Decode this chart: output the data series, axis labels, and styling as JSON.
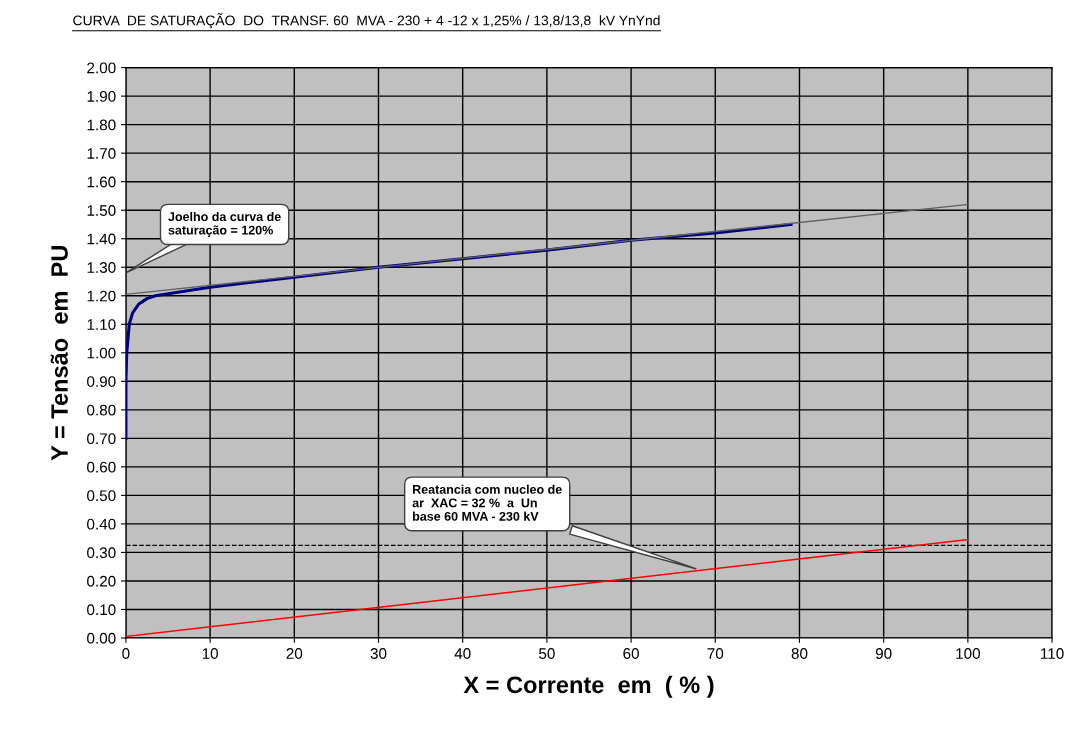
{
  "chart_data": {
    "type": "line",
    "title": "CURVA  DE SATURAÇÃO  DO  TRANSF. 60  MVA - 230 + 4 -12 x 1,25% / 13,8/13,8  kV YnYnd",
    "xlabel": "X = Corrente  em  ( % )",
    "ylabel": "Y = Tensão  em  PU",
    "series": [
      {
        "color": "#000080",
        "x": [
          0,
          0,
          0.1,
          0.4,
          0.8,
          1.5,
          2.5,
          3.5,
          10,
          20,
          30,
          40,
          50,
          60,
          70,
          79
        ],
        "values": [
          0.7,
          0.9,
          1.0,
          1.1,
          1.14,
          1.17,
          1.19,
          1.2,
          1.23,
          1.265,
          1.3,
          1.33,
          1.36,
          1.395,
          1.42,
          1.45
        ]
      },
      {
        "color": "#606060",
        "x": [
          0,
          100
        ],
        "values": [
          1.205,
          1.52
        ]
      },
      {
        "color": "#ff0000",
        "x": [
          0,
          100
        ],
        "values": [
          0.005,
          0.345
        ]
      }
    ],
    "ref_lines": [
      {
        "axis": "y",
        "value": 0.325,
        "color": "#000000",
        "line_style": "dashed"
      }
    ],
    "annotations": [
      "Joelho da curva de\nsaturação = 120%",
      {
        "text": "Reatancia com nucleo de\nar  XAC = 32 %  a  Un\nbase 60 MVA - 230 kV",
        "x": 68,
        "y": 0.24
      }
    ],
    "xlim": [
      0,
      110
    ],
    "xticks": [
      0,
      10,
      20,
      30,
      40,
      50,
      60,
      70,
      80,
      90,
      100,
      110
    ],
    "ylim": [
      0,
      2
    ],
    "yticks": [
      {
        "value": 0,
        "label": "0.00"
      },
      {
        "value": 0.1,
        "label": "0.10"
      },
      {
        "value": 0.2,
        "label": "0.20"
      },
      {
        "value": 0.3,
        "label": "0.30"
      },
      {
        "value": 0.4,
        "label": "0.40"
      },
      {
        "value": 0.5,
        "label": "0.50"
      },
      {
        "value": 0.6,
        "label": "0.60"
      },
      {
        "value": 0.7,
        "label": "0.70"
      },
      {
        "value": 0.8,
        "label": "0.80"
      },
      {
        "value": 0.9,
        "label": "0.90"
      },
      {
        "value": 1.0,
        "label": "1.00"
      },
      {
        "value": 1.1,
        "label": "1.10"
      },
      {
        "value": 1.2,
        "label": "1.20"
      },
      {
        "value": 1.3,
        "label": "1.30"
      },
      {
        "value": 1.4,
        "label": "1.40"
      },
      {
        "value": 1.5,
        "label": "1.50"
      },
      {
        "value": 1.6,
        "label": "1.60"
      },
      {
        "value": 1.7,
        "label": "1.70"
      },
      {
        "value": 1.8,
        "label": "1.80"
      },
      {
        "value": 1.9,
        "label": "1.90"
      },
      {
        "value": 2.0,
        "label": "2.00"
      }
    ],
    "grid": true,
    "legend": false,
    "marker": "none",
    "line_style": "solid"
  }
}
